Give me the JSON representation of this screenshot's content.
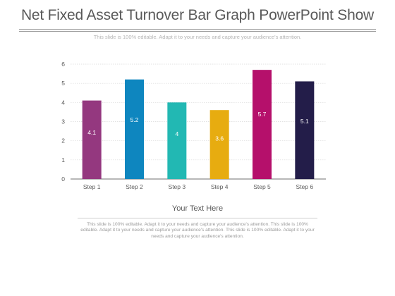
{
  "header": {
    "title": "Net Fixed Asset Turnover Bar Graph PowerPoint Show",
    "subtitle": "This slide is 100% editable. Adapt it to your needs and capture your audience's attention."
  },
  "footer": {
    "heading": "Your Text Here",
    "body": "This slide is 100% editable. Adapt it to your needs and capture your audience's attention. This slide is 100% editable. Adapt it to your needs and capture your audience's attention. This slide is 100% editable. Adapt it to your needs and capture your audience's attention."
  },
  "chart_data": {
    "type": "bar",
    "categories": [
      "Step 1",
      "Step 2",
      "Step 3",
      "Step 4",
      "Step 5",
      "Step 6"
    ],
    "values": [
      4.1,
      5.2,
      4,
      3.6,
      5.7,
      5.1
    ],
    "data_labels": [
      "4.1",
      "5.2",
      "4",
      "3.6",
      "5.7",
      "5.1"
    ],
    "colors": [
      "#94387f",
      "#0e86bf",
      "#22b8b3",
      "#e7ac10",
      "#b5106b",
      "#231d49"
    ],
    "ylim": [
      0,
      6
    ],
    "yticks": [
      0,
      1,
      2,
      3,
      4,
      5,
      6
    ],
    "grid": true,
    "legend": "none",
    "title": "",
    "xlabel": "",
    "ylabel": ""
  }
}
